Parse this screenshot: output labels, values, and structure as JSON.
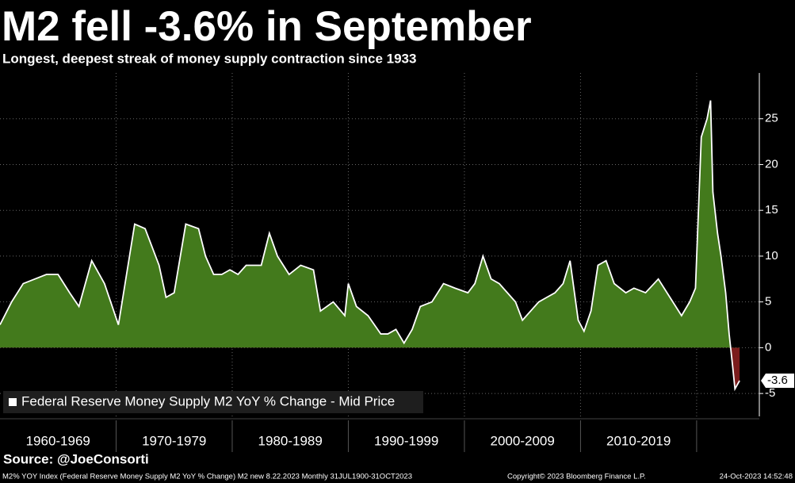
{
  "chart_data": {
    "type": "area",
    "title": "M2 fell -3.6% in September",
    "subtitle": "Longest, deepest streak of money supply contraction since 1933",
    "series": [
      {
        "name": "Federal Reserve Money Supply M2 YoY % Change - Mid Price",
        "color": "#437a1c",
        "negative_color": "#7b1c1c",
        "x": [
          1960,
          1961,
          1962,
          1963,
          1964,
          1965,
          1966,
          1966.8,
          1967.9,
          1969,
          1970.2,
          1971.6,
          1972.5,
          1973.7,
          1974.3,
          1975,
          1976,
          1977.1,
          1977.7,
          1978.4,
          1979.1,
          1979.8,
          1980.5,
          1981.2,
          1981.8,
          1982.5,
          1983.2,
          1983.9,
          1984.9,
          1985.9,
          1987,
          1987.6,
          1988.7,
          1989.7,
          1990,
          1990.7,
          1991.7,
          1992.8,
          1993.4,
          1994.1,
          1994.8,
          1995.5,
          1996.2,
          1997.2,
          1998.2,
          1999.2,
          2000.3,
          2000.9,
          2001.6,
          2002.3,
          2003,
          2003.7,
          2004.4,
          2005,
          2005.7,
          2006.4,
          2007.1,
          2007.8,
          2008.5,
          2009.1,
          2009.8,
          2010.3,
          2010.9,
          2011.5,
          2012.2,
          2012.9,
          2013.9,
          2014.6,
          2015.6,
          2016.7,
          2017.7,
          2018.7,
          2019.4,
          2019.9,
          2020.4,
          2020.9,
          2021.2,
          2021.4,
          2021.8,
          2022.1,
          2022.5,
          2022.8,
          2023.1,
          2023.3,
          2023.7
        ],
        "values": [
          2.5,
          5,
          7,
          7.5,
          8,
          8,
          6,
          4.5,
          9.5,
          7,
          2.5,
          13.5,
          13,
          9,
          5.5,
          6,
          13.5,
          13,
          10,
          8,
          8,
          8.5,
          8,
          9,
          9,
          9,
          12.5,
          10,
          8,
          9,
          8.5,
          4,
          5,
          3.5,
          7,
          4.5,
          3.5,
          1.5,
          1.5,
          2,
          0.5,
          2,
          4.5,
          5,
          7,
          6.5,
          6,
          7,
          10,
          7.5,
          7,
          6,
          5,
          3,
          4,
          5,
          5.5,
          6,
          7,
          9.5,
          3,
          1.8,
          4,
          9,
          9.5,
          7,
          6,
          6.5,
          6,
          7.5,
          5.5,
          3.5,
          5,
          6.5,
          23,
          25,
          27,
          17,
          12.5,
          10,
          6,
          1.5,
          -2,
          -4.5,
          -3.6
        ]
      }
    ],
    "xlim": [
      1960,
      2025.4
    ],
    "xticks": [
      1970,
      1980,
      1990,
      2000,
      2010,
      2020
    ],
    "period_labels": [
      "1960-1969",
      "1970-1979",
      "1980-1989",
      "1990-1999",
      "2000-2009",
      "2010-2019"
    ],
    "ylim": [
      -7.5,
      30
    ],
    "yticks": [
      -5,
      0,
      5,
      10,
      15,
      20,
      25
    ],
    "grid": true,
    "source": "Source: @JoeConsorti",
    "footer": {
      "index": "M2% YOY Index (Federal Reserve Money Supply M2 YoY % Change) M2 new 8.22.2023  Monthly 31JUL1900-31OCT2023",
      "copyright": "Copyright© 2023 Bloomberg Finance L.P.",
      "timestamp": "24-Oct-2023 14:52:48"
    }
  }
}
